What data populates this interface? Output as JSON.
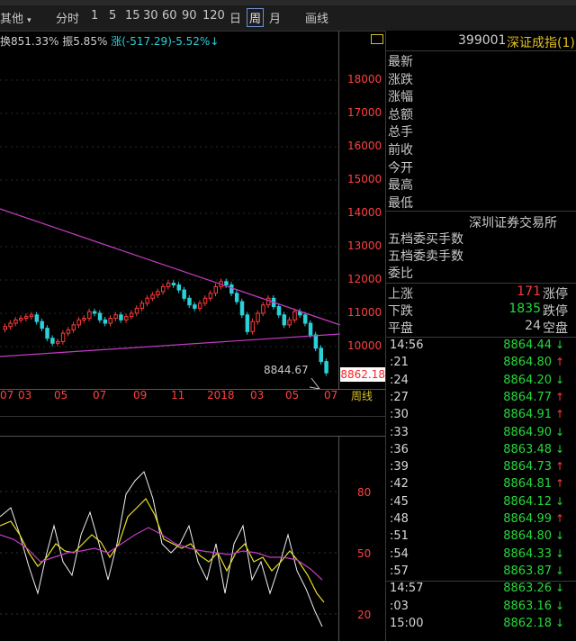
{
  "toolbar": {
    "other_label": "其他",
    "period_items": [
      "分时",
      "1",
      "5",
      "15",
      "30",
      "60",
      "90",
      "120",
      "日",
      "周",
      "月"
    ],
    "selected_period": "周",
    "draw_label": "画线"
  },
  "chart_header": {
    "stat1": "换851.33%",
    "stat2": "振5.85%",
    "change": "涨(-517.29)-5.52%↓"
  },
  "price_axis": {
    "ticks": [
      "18000",
      "17000",
      "16000",
      "15000",
      "14000",
      "13000",
      "12000",
      "11000",
      "10000"
    ],
    "current_price": "8862.18"
  },
  "min_label": "8844.67",
  "x_axis_labels": [
    "07",
    "03",
    "05",
    "07",
    "09",
    "11",
    "2018",
    "03",
    "05",
    "07"
  ],
  "period_tag": "周线",
  "indicator_axis": {
    "ticks": [
      "80",
      "50",
      "20"
    ]
  },
  "quote": {
    "code": "399001",
    "name": "深证成指(1)",
    "fields": [
      "最新",
      "涨跌",
      "涨幅",
      "总额",
      "总手",
      "前收",
      "今开",
      "最高",
      "最低"
    ],
    "exchange": "深圳证券交易所",
    "order_fields": [
      "五档委买手数",
      "五档委卖手数",
      "委比"
    ],
    "breadth": [
      {
        "label": "上涨",
        "value": "171",
        "label2": "涨停"
      },
      {
        "label": "下跌",
        "value": "1835",
        "label2": "跌停"
      },
      {
        "label": "平盘",
        "value": "24",
        "label2": "空盘"
      }
    ]
  },
  "ticks": [
    {
      "time": "14:56",
      "price": "8864.44",
      "dir": "↓"
    },
    {
      "time": ":21",
      "price": "8864.80",
      "dir": "↑"
    },
    {
      "time": ":24",
      "price": "8864.20",
      "dir": "↓"
    },
    {
      "time": ":27",
      "price": "8864.77",
      "dir": "↑"
    },
    {
      "time": ":30",
      "price": "8864.91",
      "dir": "↑"
    },
    {
      "time": ":33",
      "price": "8864.90",
      "dir": "↓"
    },
    {
      "time": ":36",
      "price": "8863.48",
      "dir": "↓"
    },
    {
      "time": ":39",
      "price": "8864.73",
      "dir": "↑"
    },
    {
      "time": ":42",
      "price": "8864.81",
      "dir": "↑"
    },
    {
      "time": ":45",
      "price": "8864.12",
      "dir": "↓"
    },
    {
      "time": ":48",
      "price": "8864.99",
      "dir": "↑"
    },
    {
      "time": ":51",
      "price": "8864.80",
      "dir": "↓"
    },
    {
      "time": ":54",
      "price": "8864.33",
      "dir": "↓"
    },
    {
      "time": ":57",
      "price": "8863.87",
      "dir": "↓"
    },
    {
      "time": "14:57",
      "price": "8863.26",
      "dir": "↓"
    },
    {
      "time": ":03",
      "price": "8863.16",
      "dir": "↓"
    },
    {
      "time": "15:00",
      "price": "8862.18",
      "dir": "↓"
    }
  ],
  "colors": {
    "up": "#ff3b3b",
    "down": "#27d83c",
    "trend": "#c43cc4",
    "axis_text": "#ff4040"
  }
}
